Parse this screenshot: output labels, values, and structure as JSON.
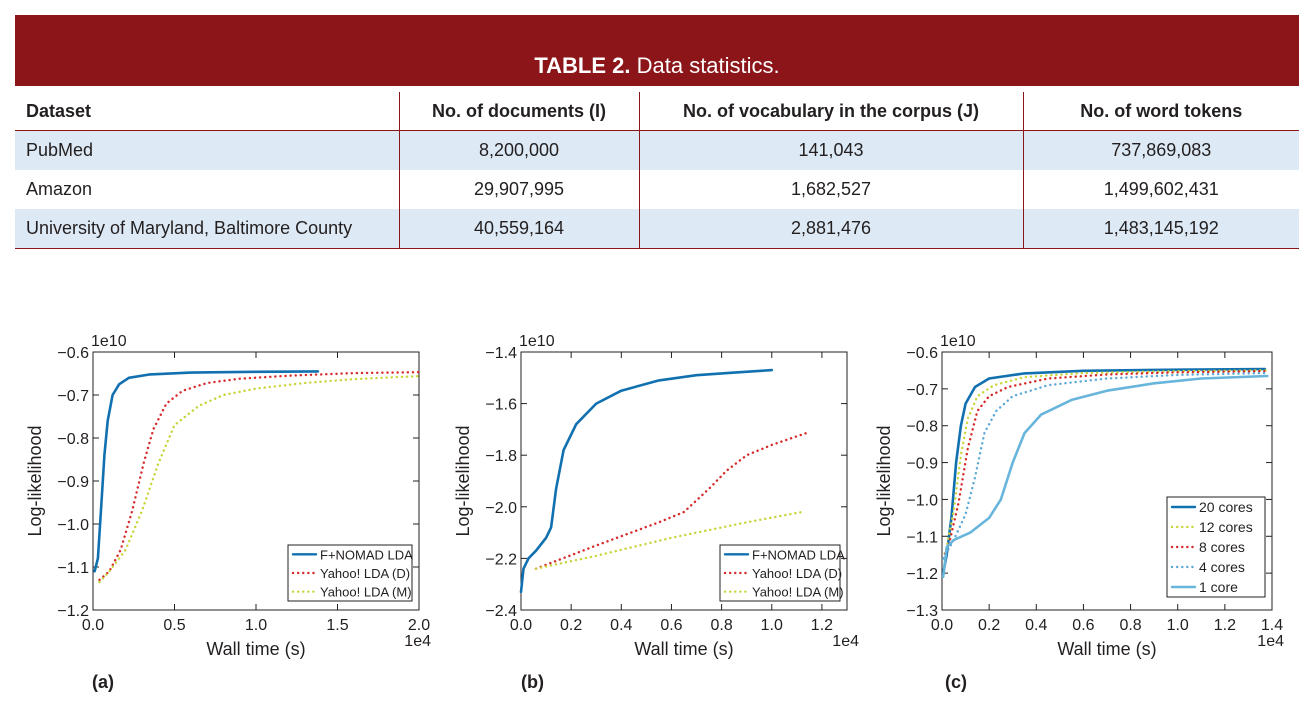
{
  "table": {
    "caption_bold": "TABLE 2.",
    "caption_rest": " Data statistics.",
    "headers": [
      "Dataset",
      "No. of documents (I)",
      "No. of vocabulary in the corpus (J)",
      "No. of word tokens"
    ],
    "rows": [
      [
        "PubMed",
        "8,200,000",
        "141,043",
        "737,869,083"
      ],
      [
        "Amazon",
        "29,907,995",
        "1,682,527",
        "1,499,602,431"
      ],
      [
        "University of Maryland, Baltimore County",
        "40,559,164",
        "2,881,476",
        "1,483,145,192"
      ]
    ]
  },
  "colors": {
    "banner": "#8c1519",
    "row_shade": "#dde9f4",
    "blue": "#1170b0",
    "red": "#d62a2a",
    "yellow": "#c8d43a",
    "light_blue": "#5aa8d6",
    "sky": "#68b5dc"
  },
  "panel_labels": [
    "(a)",
    "(b)",
    "(c)"
  ],
  "chart_data": [
    {
      "type": "line",
      "xlabel": "Wall time (s)",
      "ylabel": "Log-likelihood",
      "x_scale_label": "1e4",
      "y_scale_label": "1e10",
      "xlim": [
        0,
        2.0
      ],
      "ylim": [
        -1.2,
        -0.6
      ],
      "xticks": [
        0.0,
        0.5,
        1.0,
        1.5,
        2.0
      ],
      "xtick_labels": [
        "0.0",
        "0.5",
        "1.0",
        "1.5",
        "2.0"
      ],
      "yticks": [
        -0.6,
        -0.7,
        -0.8,
        -0.9,
        -1.0,
        -1.1,
        -1.2
      ],
      "ytick_labels": [
        "−0.6",
        "−0.7",
        "−0.8",
        "−0.9",
        "−1.0",
        "−1.1",
        "−1.2"
      ],
      "legend": "lower-right",
      "series": [
        {
          "name": "F+NOMAD LDA",
          "color": "#1170b0",
          "dash": "solid",
          "points": [
            [
              0.01,
              -1.11
            ],
            [
              0.03,
              -1.08
            ],
            [
              0.05,
              -0.96
            ],
            [
              0.07,
              -0.84
            ],
            [
              0.09,
              -0.76
            ],
            [
              0.12,
              -0.7
            ],
            [
              0.16,
              -0.675
            ],
            [
              0.22,
              -0.66
            ],
            [
              0.35,
              -0.652
            ],
            [
              0.6,
              -0.648
            ],
            [
              1.0,
              -0.646
            ],
            [
              1.38,
              -0.645
            ]
          ]
        },
        {
          "name": "Yahoo! LDA (D)",
          "color": "#d62a2a",
          "dash": "dotted",
          "points": [
            [
              0.04,
              -1.13
            ],
            [
              0.1,
              -1.11
            ],
            [
              0.17,
              -1.06
            ],
            [
              0.24,
              -0.97
            ],
            [
              0.31,
              -0.86
            ],
            [
              0.37,
              -0.78
            ],
            [
              0.45,
              -0.72
            ],
            [
              0.55,
              -0.69
            ],
            [
              0.7,
              -0.672
            ],
            [
              0.9,
              -0.662
            ],
            [
              1.2,
              -0.655
            ],
            [
              1.6,
              -0.649
            ],
            [
              2.0,
              -0.647
            ]
          ]
        },
        {
          "name": "Yahoo! LDA (M)",
          "color": "#c8d43a",
          "dash": "dotted",
          "points": [
            [
              0.04,
              -1.135
            ],
            [
              0.1,
              -1.11
            ],
            [
              0.2,
              -1.06
            ],
            [
              0.3,
              -0.97
            ],
            [
              0.4,
              -0.86
            ],
            [
              0.5,
              -0.77
            ],
            [
              0.65,
              -0.725
            ],
            [
              0.8,
              -0.7
            ],
            [
              1.0,
              -0.685
            ],
            [
              1.3,
              -0.672
            ],
            [
              1.6,
              -0.663
            ],
            [
              2.0,
              -0.656
            ]
          ]
        }
      ]
    },
    {
      "type": "line",
      "xlabel": "Wall time (s)",
      "ylabel": "Log-likelihood",
      "x_scale_label": "1e4",
      "y_scale_label": "1e10",
      "xlim": [
        0,
        1.3
      ],
      "ylim": [
        -2.4,
        -1.4
      ],
      "xticks": [
        0.0,
        0.2,
        0.4,
        0.6,
        0.8,
        1.0,
        1.2
      ],
      "xtick_labels": [
        "0.0",
        "0.2",
        "0.4",
        "0.6",
        "0.8",
        "1.0",
        "1.2"
      ],
      "yticks": [
        -1.4,
        -1.6,
        -1.8,
        -2.0,
        -2.2,
        -2.4
      ],
      "ytick_labels": [
        "−1.4",
        "−1.6",
        "−1.8",
        "−2.0",
        "−2.2",
        "−2.4"
      ],
      "legend": "lower-right",
      "series": [
        {
          "name": "F+NOMAD LDA",
          "color": "#1170b0",
          "dash": "solid",
          "points": [
            [
              0.0,
              -2.33
            ],
            [
              0.01,
              -2.24
            ],
            [
              0.03,
              -2.2
            ],
            [
              0.06,
              -2.17
            ],
            [
              0.1,
              -2.12
            ],
            [
              0.12,
              -2.08
            ],
            [
              0.14,
              -1.93
            ],
            [
              0.17,
              -1.78
            ],
            [
              0.22,
              -1.68
            ],
            [
              0.3,
              -1.6
            ],
            [
              0.4,
              -1.55
            ],
            [
              0.55,
              -1.51
            ],
            [
              0.7,
              -1.49
            ],
            [
              0.85,
              -1.48
            ],
            [
              1.0,
              -1.47
            ]
          ]
        },
        {
          "name": "Yahoo! LDA (D)",
          "color": "#d62a2a",
          "dash": "dotted",
          "points": [
            [
              0.06,
              -2.24
            ],
            [
              0.3,
              -2.15
            ],
            [
              0.55,
              -2.06
            ],
            [
              0.65,
              -2.02
            ],
            [
              0.75,
              -1.93
            ],
            [
              0.82,
              -1.86
            ],
            [
              0.9,
              -1.8
            ],
            [
              1.0,
              -1.76
            ],
            [
              1.15,
              -1.71
            ]
          ]
        },
        {
          "name": "Yahoo! LDA (M)",
          "color": "#c8d43a",
          "dash": "dotted",
          "points": [
            [
              0.06,
              -2.24
            ],
            [
              0.3,
              -2.19
            ],
            [
              0.6,
              -2.12
            ],
            [
              0.9,
              -2.06
            ],
            [
              1.12,
              -2.02
            ]
          ]
        }
      ]
    },
    {
      "type": "line",
      "xlabel": "Wall time (s)",
      "ylabel": "Log-likelihood",
      "x_scale_label": "1e4",
      "y_scale_label": "1e10",
      "xlim": [
        0,
        1.4
      ],
      "ylim": [
        -1.3,
        -0.6
      ],
      "xticks": [
        0.0,
        0.2,
        0.4,
        0.6,
        0.8,
        1.0,
        1.2,
        1.4
      ],
      "xtick_labels": [
        "0.0",
        "0.2",
        "0.4",
        "0.6",
        "0.8",
        "1.0",
        "1.2",
        "1.4"
      ],
      "yticks": [
        -0.6,
        -0.7,
        -0.8,
        -0.9,
        -1.0,
        -1.1,
        -1.2,
        -1.3
      ],
      "ytick_labels": [
        "−0.6",
        "−0.7",
        "−0.8",
        "−0.9",
        "−1.0",
        "−1.1",
        "−1.2",
        "−1.3"
      ],
      "legend": "lower-right",
      "series": [
        {
          "name": "20 cores",
          "color": "#1170b0",
          "dash": "solid",
          "points": [
            [
              0.005,
              -1.2
            ],
            [
              0.02,
              -1.15
            ],
            [
              0.04,
              -1.05
            ],
            [
              0.06,
              -0.9
            ],
            [
              0.08,
              -0.8
            ],
            [
              0.1,
              -0.74
            ],
            [
              0.14,
              -0.695
            ],
            [
              0.2,
              -0.672
            ],
            [
              0.35,
              -0.658
            ],
            [
              0.6,
              -0.651
            ],
            [
              1.0,
              -0.648
            ],
            [
              1.37,
              -0.646
            ]
          ]
        },
        {
          "name": "12 cores",
          "color": "#c8d43a",
          "dash": "dotted",
          "points": [
            [
              0.005,
              -1.16
            ],
            [
              0.02,
              -1.13
            ],
            [
              0.05,
              -1.03
            ],
            [
              0.08,
              -0.88
            ],
            [
              0.11,
              -0.78
            ],
            [
              0.15,
              -0.72
            ],
            [
              0.22,
              -0.69
            ],
            [
              0.35,
              -0.668
            ],
            [
              0.6,
              -0.657
            ],
            [
              1.0,
              -0.652
            ],
            [
              1.38,
              -0.65
            ]
          ]
        },
        {
          "name": "8 cores",
          "color": "#d62a2a",
          "dash": "dotted",
          "points": [
            [
              0.005,
              -1.16
            ],
            [
              0.03,
              -1.12
            ],
            [
              0.07,
              -1.01
            ],
            [
              0.11,
              -0.86
            ],
            [
              0.15,
              -0.76
            ],
            [
              0.2,
              -0.72
            ],
            [
              0.28,
              -0.695
            ],
            [
              0.45,
              -0.672
            ],
            [
              0.7,
              -0.661
            ],
            [
              1.0,
              -0.655
            ],
            [
              1.38,
              -0.652
            ]
          ]
        },
        {
          "name": "4 cores",
          "color": "#5aa8d6",
          "dash": "dotted",
          "points": [
            [
              0.005,
              -1.16
            ],
            [
              0.05,
              -1.11
            ],
            [
              0.1,
              -1.04
            ],
            [
              0.14,
              -0.94
            ],
            [
              0.18,
              -0.82
            ],
            [
              0.23,
              -0.76
            ],
            [
              0.3,
              -0.72
            ],
            [
              0.45,
              -0.69
            ],
            [
              0.7,
              -0.672
            ],
            [
              1.0,
              -0.662
            ],
            [
              1.38,
              -0.657
            ]
          ]
        },
        {
          "name": "1 core",
          "color": "#68b5dc",
          "dash": "solid",
          "points": [
            [
              0.005,
              -1.21
            ],
            [
              0.02,
              -1.13
            ],
            [
              0.05,
              -1.11
            ],
            [
              0.12,
              -1.09
            ],
            [
              0.2,
              -1.05
            ],
            [
              0.25,
              -1.0
            ],
            [
              0.3,
              -0.9
            ],
            [
              0.35,
              -0.82
            ],
            [
              0.42,
              -0.77
            ],
            [
              0.55,
              -0.73
            ],
            [
              0.7,
              -0.705
            ],
            [
              0.9,
              -0.685
            ],
            [
              1.1,
              -0.672
            ],
            [
              1.38,
              -0.665
            ]
          ]
        }
      ]
    }
  ]
}
